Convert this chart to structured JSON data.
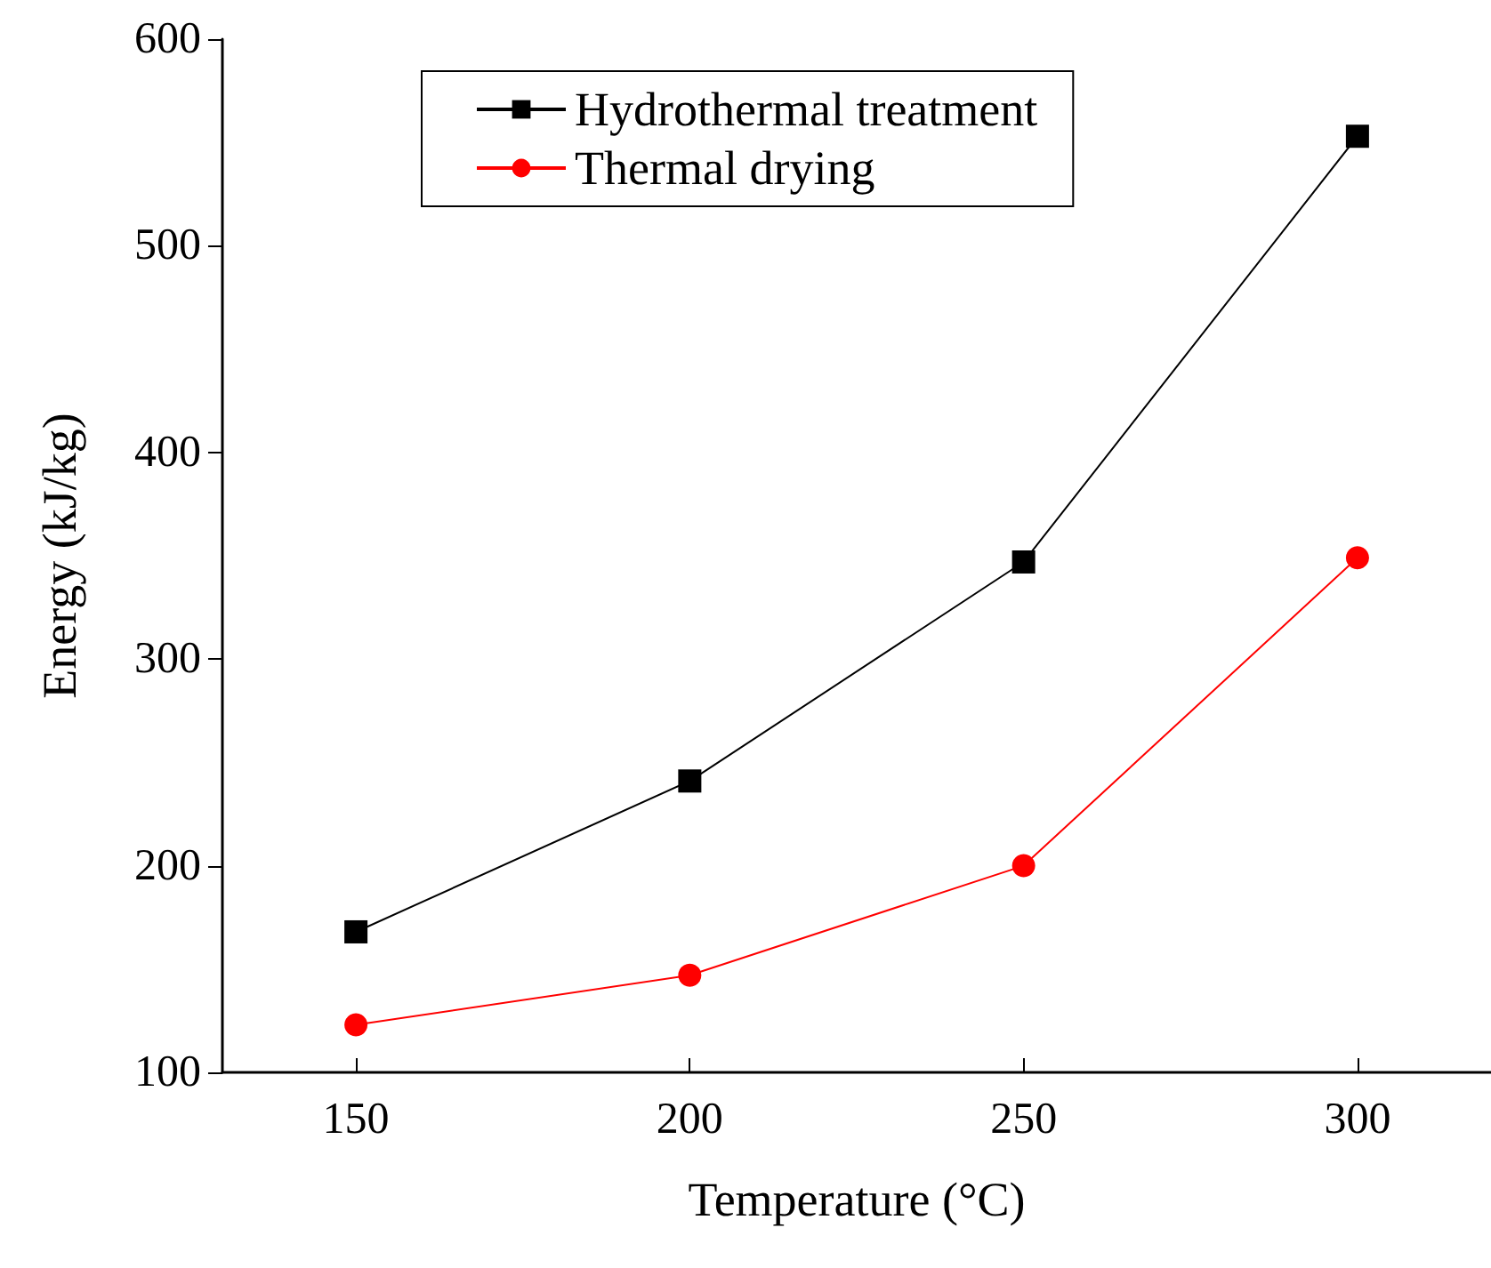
{
  "chart_data": {
    "type": "line",
    "xlabel": "Temperature (°C)",
    "ylabel": "Energy (kJ/kg)",
    "x": [
      150,
      200,
      250,
      300
    ],
    "series": [
      {
        "name": "Hydrothermal treatment",
        "color": "#000000",
        "marker": "square",
        "values": [
          168,
          241,
          347,
          553
        ]
      },
      {
        "name": "Thermal drying",
        "color": "#ff0000",
        "marker": "circle",
        "values": [
          123,
          147,
          200,
          349
        ]
      }
    ],
    "xlim": [
      130,
      320
    ],
    "xticks": [
      150,
      200,
      250,
      300
    ],
    "ylim": [
      100,
      600
    ],
    "yticks": [
      100,
      200,
      300,
      400,
      500,
      600
    ],
    "grid": false,
    "legend": "top"
  }
}
